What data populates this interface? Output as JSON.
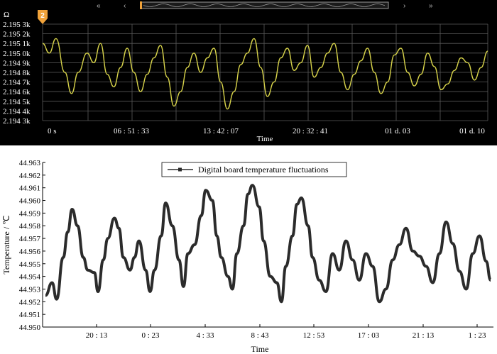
{
  "top_panel": {
    "marker_label": "2",
    "nav": {
      "fast_back": "«",
      "step_back": "‹",
      "step_fwd": "›",
      "fast_fwd": "»"
    },
    "colors": {
      "background": "#000000",
      "line": "#d6d24a",
      "grid": "#5a5a5a",
      "text": "#ffffff",
      "marker": "#f0a23a"
    }
  },
  "bottom_panel": {
    "colors": {
      "background": "#ffffff",
      "line": "#2b2b2b",
      "axis": "#000000",
      "text": "#000000"
    }
  },
  "chart_data": [
    {
      "type": "line",
      "title": "",
      "xlabel": "Time",
      "ylabel": "Ω",
      "x_tick_labels": [
        "0 s",
        "06 : 51 : 33",
        "13 : 42 : 07",
        "20 : 32 : 41",
        "01 d. 03",
        "01 d. 10"
      ],
      "y_tick_labels": [
        "2.195 3k",
        "2.195 2k",
        "2.195 1k",
        "2.195 0k",
        "2.194 9k",
        "2.194 8k",
        "2.194 7k",
        "2.194 6k",
        "2.194 5k",
        "2.194 4k",
        "2.194 3k"
      ],
      "ylim": [
        2194.3,
        2195.3
      ],
      "xlim": [
        0,
        100
      ],
      "grid": true,
      "series": [
        {
          "x": [
            0,
            1.5,
            3,
            5,
            6.5,
            8,
            10,
            11.5,
            13,
            14.5,
            16,
            17.5,
            19,
            20.5,
            22,
            23.5,
            25,
            26.5,
            28,
            29.5,
            31,
            32.5,
            34,
            35.5,
            37,
            38.5,
            40,
            41.5,
            43,
            44.5,
            46,
            47.5,
            49,
            50.5,
            52,
            53.5,
            55,
            56.5,
            58,
            59.5,
            61,
            62.5,
            64,
            65.5,
            67,
            68.5,
            70,
            71.5,
            73,
            74.5,
            76,
            77.5,
            79,
            80.5,
            82,
            83.5,
            85,
            86.5,
            88,
            89.5,
            91,
            92.5,
            94,
            95.5,
            97,
            98.5,
            100
          ],
          "y": [
            2195.1,
            2195.0,
            2195.15,
            2194.8,
            2194.58,
            2194.8,
            2195.0,
            2194.9,
            2195.1,
            2194.78,
            2194.65,
            2194.85,
            2195.05,
            2194.8,
            2194.6,
            2194.78,
            2194.95,
            2195.08,
            2194.75,
            2194.45,
            2194.6,
            2194.85,
            2195.0,
            2194.8,
            2194.95,
            2195.05,
            2194.7,
            2194.42,
            2194.6,
            2194.88,
            2195.0,
            2195.15,
            2194.85,
            2194.55,
            2194.7,
            2194.95,
            2195.05,
            2194.82,
            2194.9,
            2195.08,
            2194.75,
            2194.85,
            2195.0,
            2195.1,
            2194.8,
            2194.62,
            2194.78,
            2194.92,
            2195.05,
            2194.8,
            2194.58,
            2194.7,
            2194.98,
            2195.05,
            2194.8,
            2194.66,
            2194.78,
            2195.0,
            2194.86,
            2194.62,
            2194.68,
            2194.82,
            2194.95,
            2194.9,
            2194.72,
            2194.85,
            2195.02
          ]
        }
      ]
    },
    {
      "type": "line",
      "title": "",
      "xlabel": "Time",
      "ylabel": "Temperature / ℃",
      "legend": {
        "position": "top-center",
        "entries": [
          "Digital board temperature fluctuations"
        ]
      },
      "x_tick_labels": [
        "20 : 13",
        "0 : 23",
        "4 : 33",
        "8 : 43",
        "12 : 53",
        "17 : 03",
        "21 : 13",
        "1 : 23"
      ],
      "y_tick_labels": [
        "44.963",
        "44.962",
        "44.961",
        "44.960",
        "44.959",
        "44.958",
        "44.957",
        "44.956",
        "44.955",
        "44.954",
        "44.953",
        "44.952",
        "44.951",
        "44.950"
      ],
      "ylim": [
        44.95,
        44.963
      ],
      "xlim": [
        0,
        100
      ],
      "grid": false,
      "series": [
        {
          "name": "Digital board temperature fluctuations",
          "x": [
            0,
            1.5,
            2.5,
            4,
            5,
            6,
            7.2,
            8.5,
            9.5,
            11,
            11.8,
            13,
            14,
            15.5,
            16.5,
            17.5,
            19,
            20,
            21,
            22.5,
            23.5,
            24.5,
            26,
            27,
            28.5,
            30,
            31,
            32,
            33.5,
            35,
            36,
            37.5,
            38.5,
            39.5,
            41,
            42,
            43,
            44.5,
            45.5,
            46.5,
            48,
            49,
            50.5,
            52,
            53,
            54,
            55.5,
            56.5,
            57.5,
            59,
            60,
            61.5,
            63,
            64.5,
            66,
            67.5,
            69,
            70.5,
            72,
            73.5,
            75,
            76.5,
            78,
            79.5,
            81,
            82.5,
            84,
            85.5,
            87,
            88.5,
            90,
            91.5,
            93,
            94.5,
            96,
            97.5,
            99,
            100
          ],
          "y": [
            44.9525,
            44.9535,
            44.9522,
            44.9555,
            44.9575,
            44.9593,
            44.958,
            44.9555,
            44.9545,
            44.9543,
            44.9528,
            44.9553,
            44.957,
            44.9586,
            44.9578,
            44.9555,
            44.9545,
            44.9555,
            44.9568,
            44.9545,
            44.9528,
            44.9545,
            44.9572,
            44.9598,
            44.958,
            44.9553,
            44.9532,
            44.9558,
            44.9565,
            44.9588,
            44.9608,
            44.96,
            44.9572,
            44.9555,
            44.954,
            44.953,
            44.9558,
            44.958,
            44.9605,
            44.9612,
            44.9595,
            44.9568,
            44.954,
            44.9535,
            44.952,
            44.9548,
            44.9572,
            44.9597,
            44.9602,
            44.958,
            44.9555,
            44.9537,
            44.9528,
            44.9558,
            44.9545,
            44.9568,
            44.9553,
            44.9537,
            44.9558,
            44.9548,
            44.952,
            44.953,
            44.9553,
            44.9565,
            44.9578,
            44.956,
            44.9556,
            44.9548,
            44.9535,
            44.9558,
            44.9583,
            44.9566,
            44.9544,
            44.953,
            44.9558,
            44.9572,
            44.9552,
            44.9537
          ]
        }
      ]
    }
  ]
}
